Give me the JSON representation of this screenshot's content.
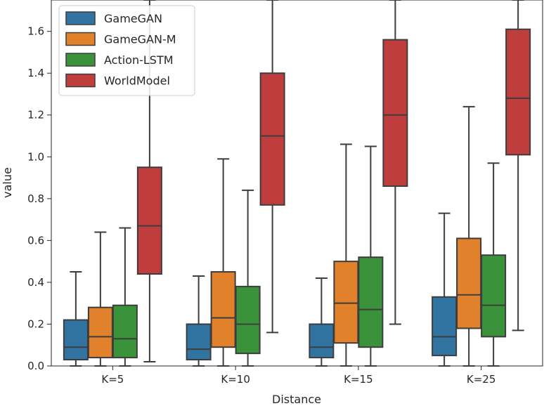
{
  "chart_data": {
    "type": "box",
    "xlabel": "Distance",
    "ylabel": "value",
    "ylim": [
      0.0,
      1.75
    ],
    "yticks": [
      "0.0",
      "0.2",
      "0.4",
      "0.6",
      "0.8",
      "1.0",
      "1.2",
      "1.4",
      "1.6"
    ],
    "categories": [
      "K=5",
      "K=10",
      "K=15",
      "K=25"
    ],
    "legend": {
      "placement": "top-left"
    },
    "series": [
      {
        "name": "GameGAN",
        "color": "#3274a1",
        "boxes": [
          {
            "whislo": 0.0,
            "q1": 0.03,
            "med": 0.09,
            "q3": 0.22,
            "whishi": 0.45
          },
          {
            "whislo": 0.0,
            "q1": 0.03,
            "med": 0.08,
            "q3": 0.2,
            "whishi": 0.43
          },
          {
            "whislo": 0.0,
            "q1": 0.04,
            "med": 0.09,
            "q3": 0.2,
            "whishi": 0.42
          },
          {
            "whislo": 0.0,
            "q1": 0.05,
            "med": 0.14,
            "q3": 0.33,
            "whishi": 0.73
          }
        ]
      },
      {
        "name": "GameGAN-M",
        "color": "#e1812c",
        "boxes": [
          {
            "whislo": 0.0,
            "q1": 0.04,
            "med": 0.14,
            "q3": 0.28,
            "whishi": 0.64
          },
          {
            "whislo": 0.0,
            "q1": 0.09,
            "med": 0.23,
            "q3": 0.45,
            "whishi": 0.99
          },
          {
            "whislo": 0.0,
            "q1": 0.11,
            "med": 0.3,
            "q3": 0.5,
            "whishi": 1.06
          },
          {
            "whislo": 0.0,
            "q1": 0.18,
            "med": 0.34,
            "q3": 0.61,
            "whishi": 1.24
          }
        ]
      },
      {
        "name": "Action-LSTM",
        "color": "#3a923a",
        "boxes": [
          {
            "whislo": 0.0,
            "q1": 0.04,
            "med": 0.13,
            "q3": 0.29,
            "whishi": 0.66
          },
          {
            "whislo": 0.0,
            "q1": 0.06,
            "med": 0.2,
            "q3": 0.38,
            "whishi": 0.84
          },
          {
            "whislo": 0.0,
            "q1": 0.09,
            "med": 0.27,
            "q3": 0.52,
            "whishi": 1.05
          },
          {
            "whislo": 0.0,
            "q1": 0.14,
            "med": 0.29,
            "q3": 0.53,
            "whishi": 0.97
          }
        ]
      },
      {
        "name": "WorldModel",
        "color": "#c03d3e",
        "boxes": [
          {
            "whislo": 0.02,
            "q1": 0.44,
            "med": 0.67,
            "q3": 0.95,
            "whishi": 1.75
          },
          {
            "whislo": 0.16,
            "q1": 0.77,
            "med": 1.1,
            "q3": 1.4,
            "whishi": 1.75
          },
          {
            "whislo": 0.2,
            "q1": 0.86,
            "med": 1.2,
            "q3": 1.56,
            "whishi": 1.75
          },
          {
            "whislo": 0.17,
            "q1": 1.01,
            "med": 1.28,
            "q3": 1.61,
            "whishi": 1.75
          }
        ]
      }
    ]
  }
}
